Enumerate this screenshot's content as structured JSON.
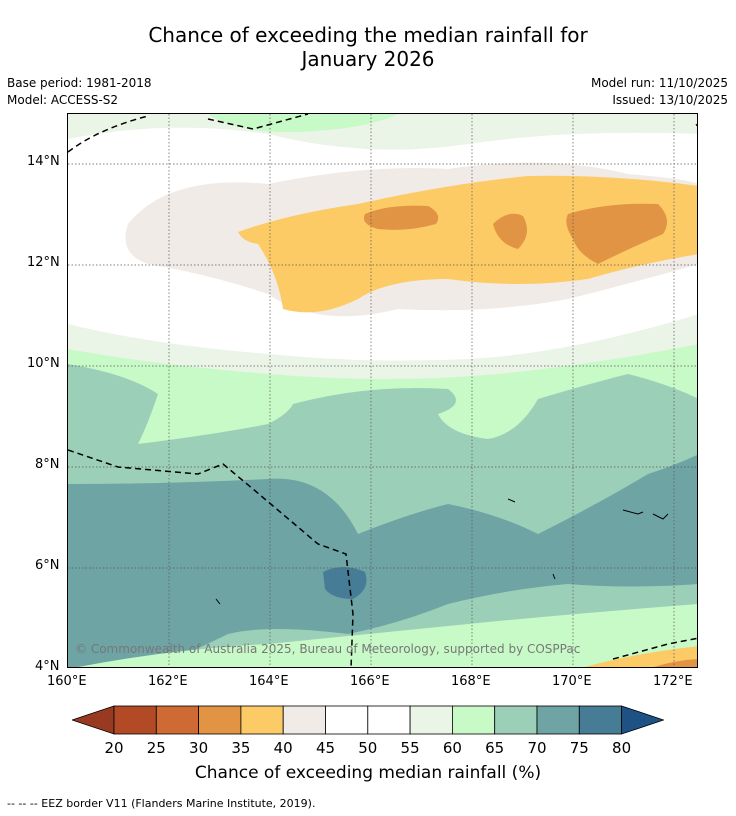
{
  "title_line1": "Chance of exceeding the median rainfall for",
  "title_line2": "January 2026",
  "base_period": "Base period: 1981-2018",
  "model": "Model: ACCESS-S2",
  "model_run": "Model run: 11/10/2025",
  "issued": "Issued: 13/10/2025",
  "lat_ticks": [
    "14°N",
    "12°N",
    "10°N",
    "8°N",
    "6°N",
    "4°N"
  ],
  "lon_ticks": [
    "160°E",
    "162°E",
    "164°E",
    "166°E",
    "168°E",
    "170°E",
    "172°E"
  ],
  "copyright": "© Commonwealth of Australia 2025, Bureau of Meteorology, supported by COSPPac",
  "colorbar": {
    "labels": [
      "20",
      "25",
      "30",
      "35",
      "40",
      "45",
      "50",
      "55",
      "60",
      "65",
      "70",
      "75",
      "80"
    ],
    "colors": [
      "#b34a26",
      "#cf6a35",
      "#e09444",
      "#fdcb66",
      "#f0ebe6",
      "#ffffff",
      "#ffffff",
      "#eaf4e7",
      "#c8fac8",
      "#9ccfb8",
      "#6ea4a4",
      "#477c96"
    ],
    "under_color": "#983a21",
    "over_color": "#1e5284",
    "title": "Chance of exceeding median rainfall (%)"
  },
  "footnote": "--  --  -- EEZ border V11 (Flanders Marine Institute, 2019)."
}
